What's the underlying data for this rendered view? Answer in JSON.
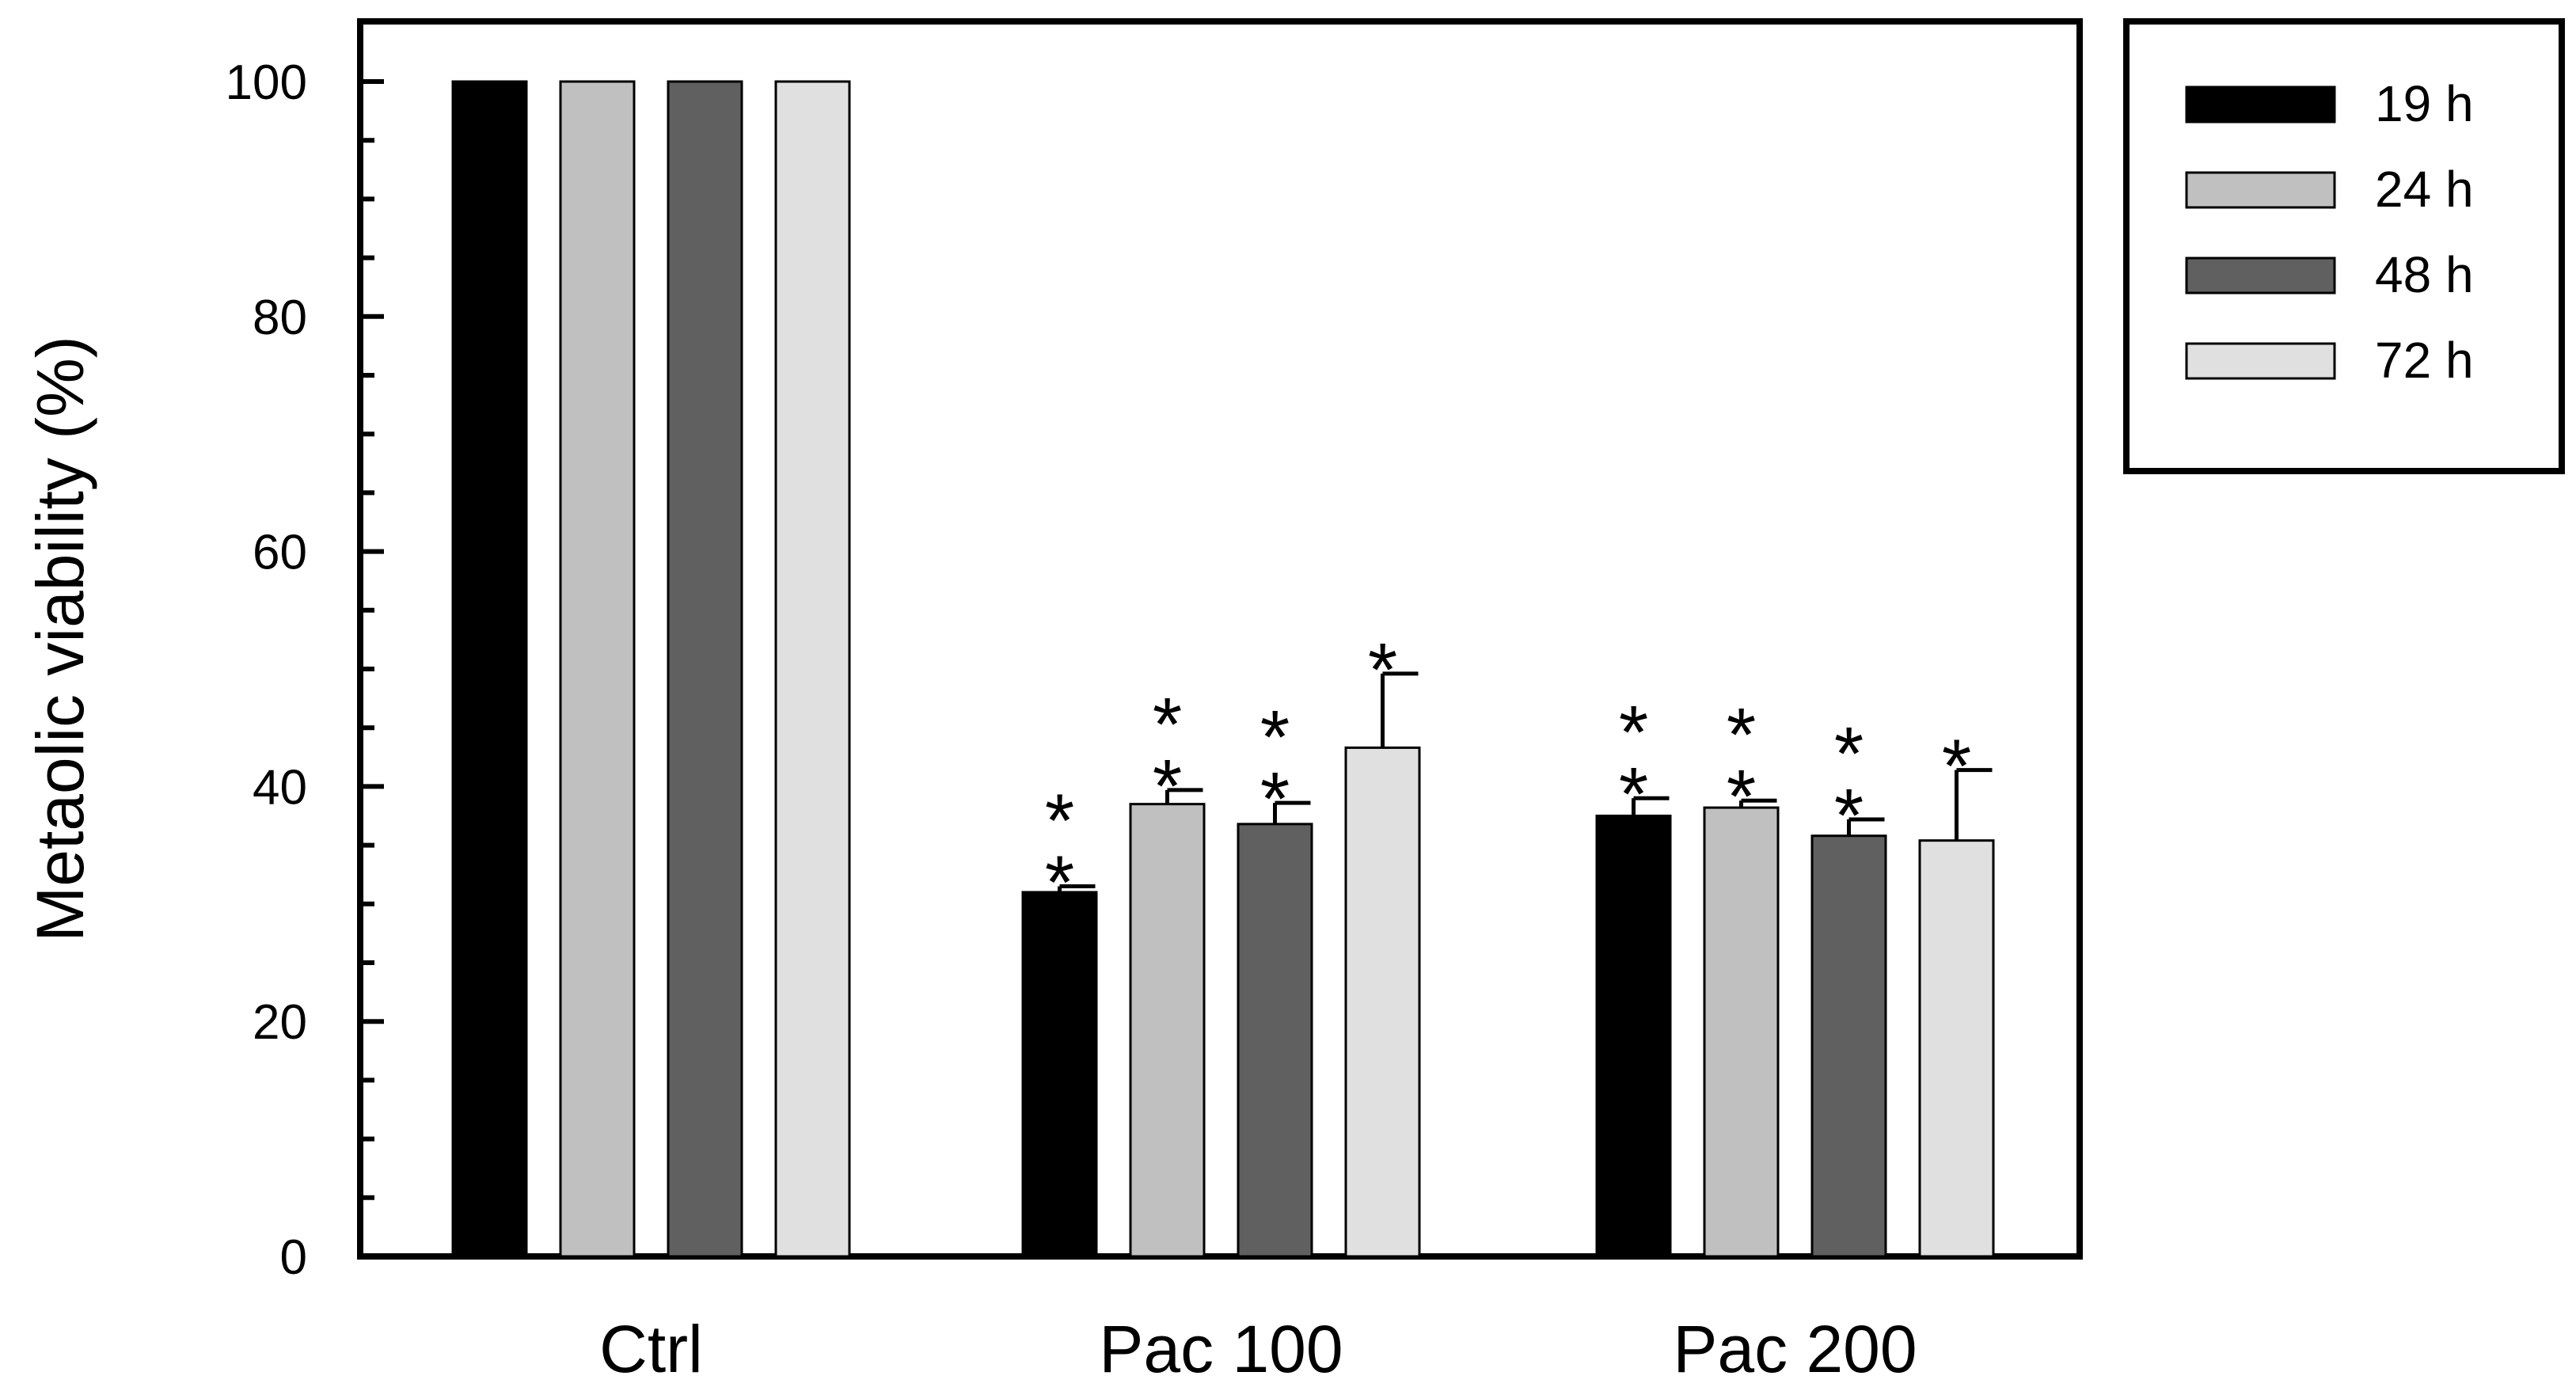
{
  "chart_data": {
    "type": "bar",
    "title": "",
    "xlabel": "",
    "ylabel": "Metaolic viability  (%)",
    "ylim": [
      0,
      100
    ],
    "yticks": [
      0,
      20,
      40,
      60,
      80,
      100
    ],
    "y_minor_step": 5,
    "categories": [
      "Ctrl",
      "Pac 100",
      "Pac 200"
    ],
    "legend_position": "outside-top-right",
    "series": [
      {
        "name": "19 h",
        "color": "#000000",
        "values": [
          100,
          31,
          37.5
        ],
        "errors": [
          0,
          0.5,
          1.5
        ],
        "significance": [
          "",
          "**",
          "**"
        ]
      },
      {
        "name": "24 h",
        "color": "#c0c0c0",
        "values": [
          100,
          38.5,
          38.2
        ],
        "errors": [
          0,
          1.2,
          0.6
        ],
        "significance": [
          "",
          "**",
          "**"
        ]
      },
      {
        "name": "48 h",
        "color": "#606060",
        "values": [
          100,
          36.8,
          35.8
        ],
        "errors": [
          0,
          1.8,
          1.4
        ],
        "significance": [
          "",
          "**",
          "**"
        ]
      },
      {
        "name": "72 h",
        "color": "#e0e0e0",
        "values": [
          100,
          43.3,
          35.4
        ],
        "errors": [
          0,
          6.3,
          6.0
        ],
        "significance": [
          "",
          "*",
          "*"
        ]
      }
    ]
  }
}
